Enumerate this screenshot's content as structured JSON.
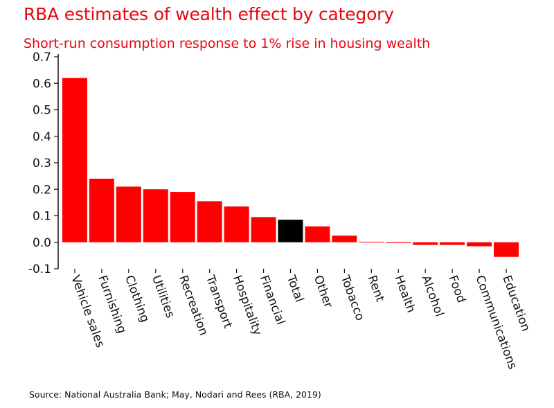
{
  "title": "RBA estimates of wealth effect by category",
  "subtitle": "Short-run consumption response to 1% rise in housing wealth",
  "source": "Source: National Australia Bank; May, Nodari and Rees (RBA, 2019)",
  "colors": {
    "bar": "#ff0000",
    "highlight": "#000000",
    "title": "#e8060f"
  },
  "chart_data": {
    "type": "bar",
    "title": "RBA estimates of wealth effect by category",
    "subtitle": "Short-run consumption response to 1% rise in housing wealth",
    "xlabel": "",
    "ylabel": "",
    "ylim": [
      -0.1,
      0.7
    ],
    "yticks": [
      "0.7",
      "0.6",
      "0.5",
      "0.4",
      "0.3",
      "0.2",
      "0.1",
      "0.0",
      "-0.1"
    ],
    "grid": false,
    "categories": [
      "Vehicle sales",
      "Furnishing",
      "Clothing",
      "Utilities",
      "Recreation",
      "Transport",
      "Hospitality",
      "Financial",
      "Total",
      "Other",
      "Tobacco",
      "Rent",
      "Health",
      "Alcohol",
      "Food",
      "Communications",
      "Education"
    ],
    "values": [
      0.62,
      0.24,
      0.21,
      0.2,
      0.19,
      0.155,
      0.135,
      0.095,
      0.085,
      0.06,
      0.025,
      0.002,
      -0.003,
      -0.01,
      -0.01,
      -0.015,
      -0.055
    ],
    "highlight_category": "Total"
  }
}
